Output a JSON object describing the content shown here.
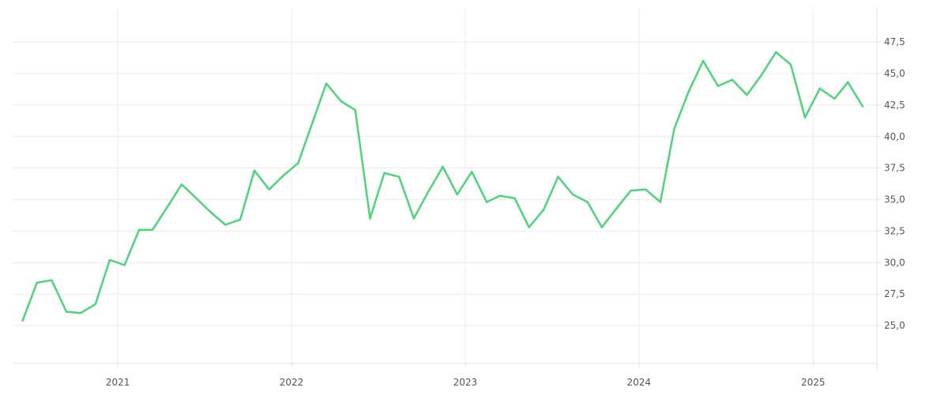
{
  "chart_data": {
    "type": "line",
    "title": "",
    "xlabel": "",
    "ylabel": "",
    "grid": true,
    "legend": "none",
    "x_ticks": [
      "2021",
      "2022",
      "2023",
      "2024",
      "2025"
    ],
    "y_ticks": [
      "25,0",
      "27,5",
      "30,0",
      "32,5",
      "35,0",
      "37,5",
      "40,0",
      "42,5",
      "45,0",
      "47,5"
    ],
    "y_tick_values": [
      25,
      27.5,
      30,
      32.5,
      35,
      37.5,
      40,
      42.5,
      45,
      47.5
    ],
    "xlim": [
      "2020-05-25",
      "2025-05-15"
    ],
    "ylim": [
      22.0,
      50.2
    ],
    "series": [
      {
        "color": "#4fd37a",
        "x": [
          "2020-06-15",
          "2020-07-15",
          "2020-08-15",
          "2020-09-15",
          "2020-10-15",
          "2020-11-15",
          "2020-12-15",
          "2021-01-15",
          "2021-02-15",
          "2021-03-15",
          "2021-04-15",
          "2021-05-15",
          "2021-06-15",
          "2021-07-15",
          "2021-08-15",
          "2021-09-15",
          "2021-10-15",
          "2021-11-15",
          "2021-12-15",
          "2022-01-15",
          "2022-02-15",
          "2022-03-15",
          "2022-04-15",
          "2022-05-15",
          "2022-06-15",
          "2022-07-15",
          "2022-08-15",
          "2022-09-15",
          "2022-10-15",
          "2022-11-15",
          "2022-12-15",
          "2023-01-15",
          "2023-02-15",
          "2023-03-15",
          "2023-04-15",
          "2023-05-15",
          "2023-06-15",
          "2023-07-15",
          "2023-08-15",
          "2023-09-15",
          "2023-10-15",
          "2023-11-15",
          "2023-12-15",
          "2024-01-15",
          "2024-02-15",
          "2024-03-15",
          "2024-04-15",
          "2024-05-15",
          "2024-06-15",
          "2024-07-15",
          "2024-08-15",
          "2024-09-15",
          "2024-10-15",
          "2024-11-15",
          "2024-12-15",
          "2025-01-15",
          "2025-02-15",
          "2025-03-15",
          "2025-04-15"
        ],
        "values": [
          25.4,
          28.4,
          28.6,
          26.1,
          26.0,
          26.7,
          30.2,
          29.8,
          32.6,
          32.6,
          34.4,
          36.2,
          35.1,
          34.0,
          33.0,
          33.4,
          37.3,
          35.8,
          36.9,
          37.9,
          41.2,
          44.2,
          42.8,
          42.1,
          33.5,
          37.1,
          36.8,
          33.5,
          35.6,
          37.6,
          35.4,
          37.2,
          34.8,
          35.3,
          35.1,
          32.8,
          34.2,
          36.8,
          35.4,
          34.8,
          32.8,
          34.3,
          35.7,
          35.8,
          34.8,
          40.6,
          43.6,
          46.0,
          44.0,
          44.5,
          43.3,
          44.9,
          46.7,
          45.7,
          41.5,
          43.8,
          43.0,
          44.3,
          42.4
        ]
      }
    ]
  }
}
